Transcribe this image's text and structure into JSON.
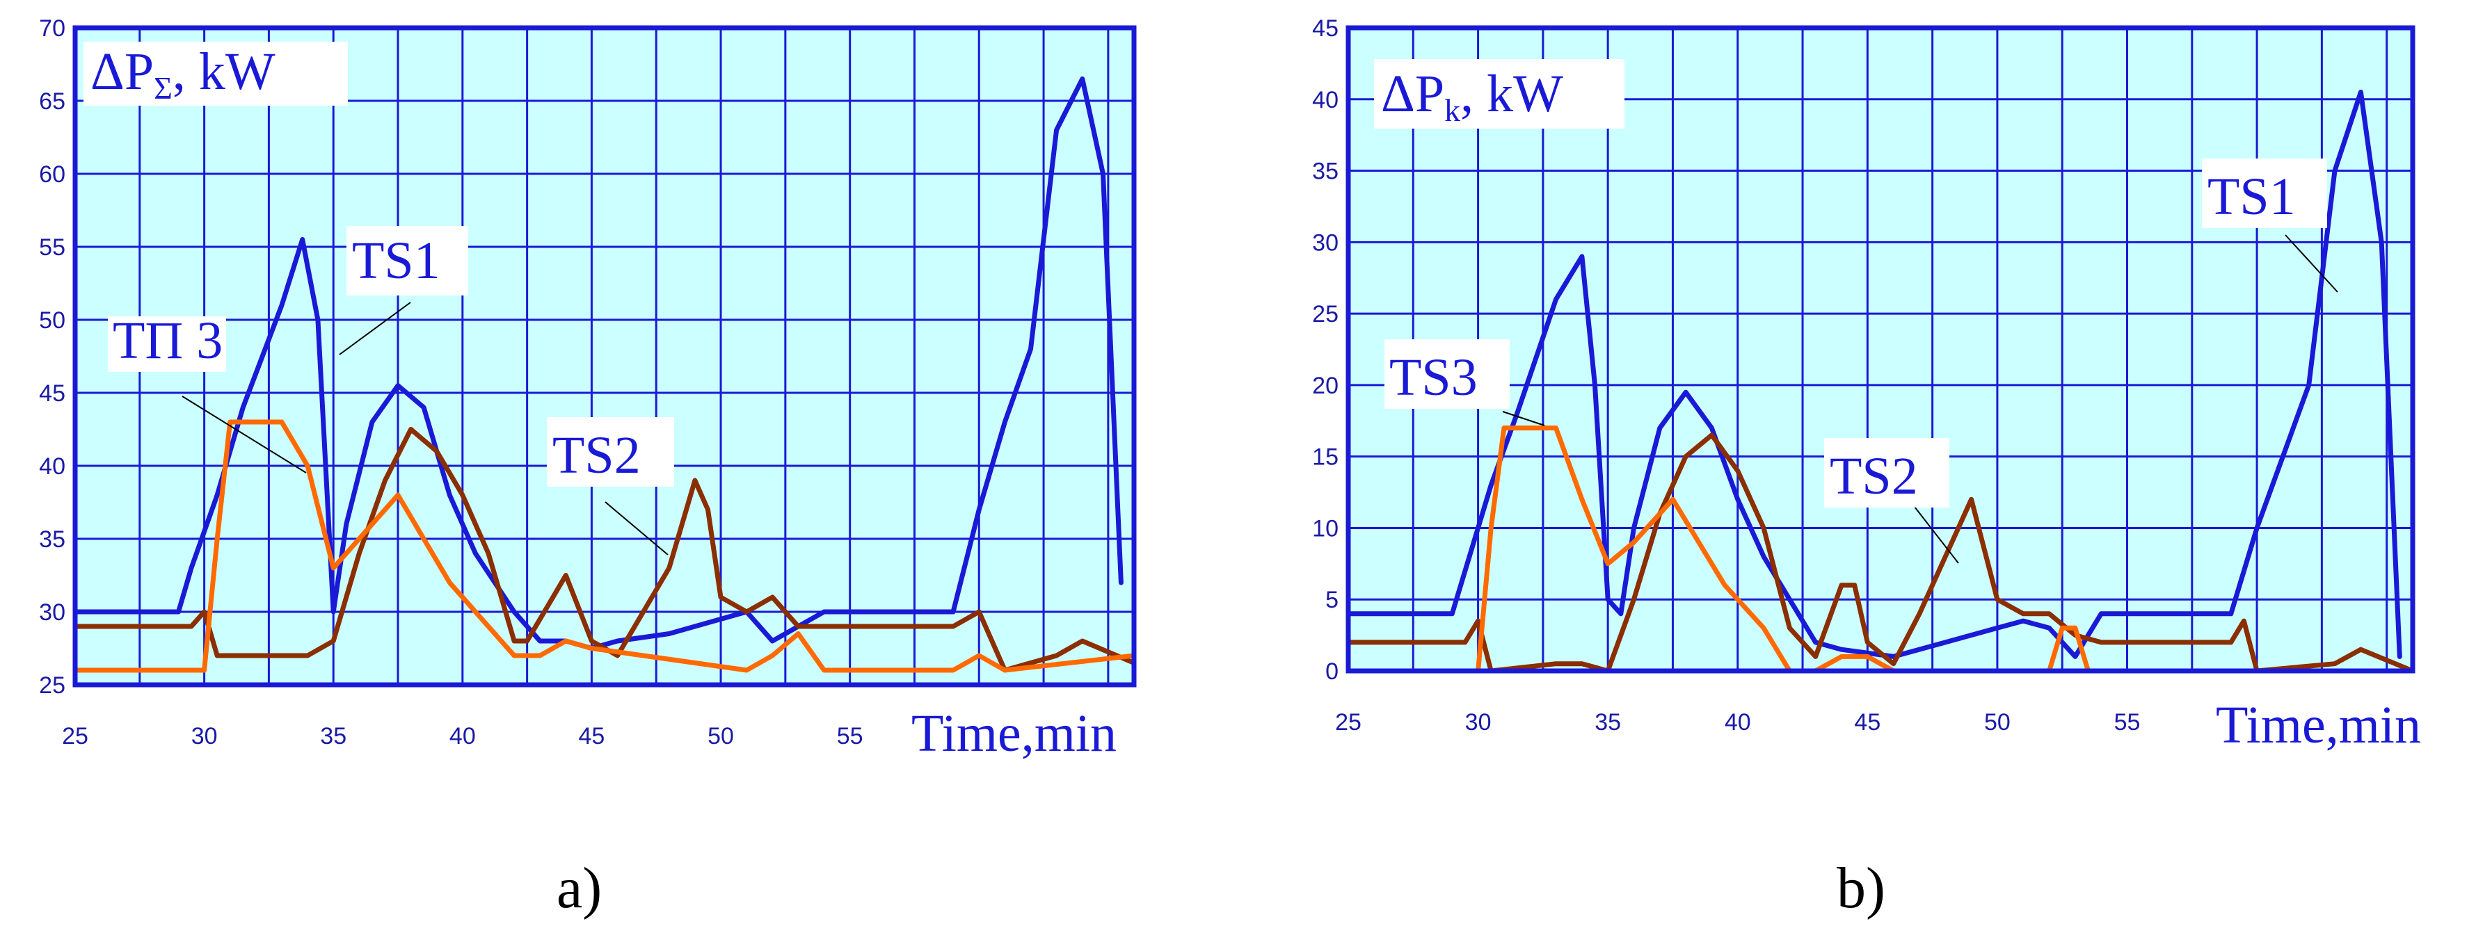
{
  "chart_data": [
    {
      "type": "line",
      "panel": "a",
      "caption": "a)",
      "ylabel_main": "ΔP",
      "ylabel_sub": "Σ",
      "ylabel_unit": ", kW",
      "xlabel": "Time,min",
      "xlim": [
        25,
        66
      ],
      "ylim": [
        25,
        70
      ],
      "xticks": [
        25,
        30,
        35,
        40,
        45,
        50,
        55
      ],
      "yticks": [
        25,
        30,
        35,
        40,
        45,
        50,
        55,
        60,
        65,
        70
      ],
      "grid": true,
      "background": "#ccffff",
      "series": [
        {
          "name": "TS1",
          "color": "#1a1ad6",
          "points": [
            [
              25,
              30
            ],
            [
              29,
              30
            ],
            [
              29.5,
              33
            ],
            [
              30.5,
              38
            ],
            [
              31.5,
              44
            ],
            [
              33,
              51
            ],
            [
              33.8,
              55.5
            ],
            [
              34.4,
              50
            ],
            [
              35,
              30
            ],
            [
              35.5,
              36
            ],
            [
              36.5,
              43
            ],
            [
              37.5,
              45.5
            ],
            [
              38.5,
              44
            ],
            [
              39.5,
              38
            ],
            [
              40.5,
              34
            ],
            [
              42,
              30
            ],
            [
              43,
              28
            ],
            [
              44,
              28
            ],
            [
              45,
              27.5
            ],
            [
              46,
              28
            ],
            [
              48,
              28.5
            ],
            [
              50,
              29.5
            ],
            [
              51,
              30
            ],
            [
              52,
              28
            ],
            [
              53,
              29
            ],
            [
              54,
              30
            ],
            [
              59,
              30
            ],
            [
              60,
              37
            ],
            [
              61,
              43
            ],
            [
              62,
              48
            ],
            [
              63,
              63
            ],
            [
              64,
              66.5
            ],
            [
              64.8,
              60
            ],
            [
              65.5,
              32
            ]
          ]
        },
        {
          "name": "ТП 3",
          "color": "#ff6a00",
          "points": [
            [
              25,
              26
            ],
            [
              30,
              26
            ],
            [
              30.5,
              35
            ],
            [
              31,
              43
            ],
            [
              33,
              43
            ],
            [
              34,
              40
            ],
            [
              35,
              33
            ],
            [
              36,
              35
            ],
            [
              37.5,
              38
            ],
            [
              38.5,
              35
            ],
            [
              39.5,
              32
            ],
            [
              40.5,
              30
            ],
            [
              42,
              27
            ],
            [
              43,
              27
            ],
            [
              44,
              28
            ],
            [
              45,
              27.5
            ],
            [
              47,
              27
            ],
            [
              49,
              26.5
            ],
            [
              51,
              26
            ],
            [
              52,
              27
            ],
            [
              53,
              28.5
            ],
            [
              54,
              26
            ],
            [
              59,
              26
            ],
            [
              60,
              27
            ],
            [
              61,
              26
            ],
            [
              66,
              27
            ]
          ]
        },
        {
          "name": "TS2",
          "color": "#8b2e00",
          "points": [
            [
              25,
              29
            ],
            [
              29.5,
              29
            ],
            [
              30,
              30
            ],
            [
              30.5,
              27
            ],
            [
              34,
              27
            ],
            [
              35,
              28
            ],
            [
              36,
              34
            ],
            [
              37,
              39
            ],
            [
              38,
              42.5
            ],
            [
              39,
              41
            ],
            [
              40,
              38
            ],
            [
              41,
              34
            ],
            [
              42,
              28
            ],
            [
              42.5,
              28
            ],
            [
              43.5,
              31
            ],
            [
              44,
              32.5
            ],
            [
              45,
              28
            ],
            [
              46,
              27
            ],
            [
              47,
              30
            ],
            [
              48,
              33
            ],
            [
              49,
              39
            ],
            [
              49.5,
              37
            ],
            [
              50,
              31
            ],
            [
              51,
              30
            ],
            [
              52,
              31
            ],
            [
              53,
              29
            ],
            [
              54,
              29
            ],
            [
              59,
              29
            ],
            [
              60,
              30
            ],
            [
              61,
              26
            ],
            [
              63,
              27
            ],
            [
              64,
              28
            ],
            [
              66,
              26.5
            ]
          ]
        }
      ],
      "annotations": [
        "TS1",
        "ТП 3",
        "TS2"
      ]
    },
    {
      "type": "line",
      "panel": "b",
      "caption": "b)",
      "ylabel_main": "ΔP",
      "ylabel_sub": "k",
      "ylabel_unit": ", kW",
      "xlabel": "Time,min",
      "xlim": [
        25,
        66
      ],
      "ylim": [
        0,
        45
      ],
      "xticks": [
        25,
        30,
        35,
        40,
        45,
        50,
        55
      ],
      "yticks": [
        0,
        5,
        10,
        15,
        20,
        25,
        30,
        35,
        40,
        45
      ],
      "grid": true,
      "background": "#ccffff",
      "series": [
        {
          "name": "TS1",
          "color": "#1a1ad6",
          "points": [
            [
              25,
              4
            ],
            [
              29,
              4
            ],
            [
              29.5,
              7
            ],
            [
              30.5,
              13
            ],
            [
              31.5,
              18
            ],
            [
              33,
              26
            ],
            [
              34,
              29
            ],
            [
              34.5,
              20
            ],
            [
              35,
              5
            ],
            [
              35.5,
              4
            ],
            [
              36,
              10
            ],
            [
              37,
              17
            ],
            [
              38,
              19.5
            ],
            [
              39,
              17
            ],
            [
              40,
              12
            ],
            [
              41,
              8
            ],
            [
              42,
              5
            ],
            [
              43,
              2
            ],
            [
              44,
              1.5
            ],
            [
              46,
              1
            ],
            [
              48,
              2
            ],
            [
              50,
              3
            ],
            [
              51,
              3.5
            ],
            [
              52,
              3
            ],
            [
              53,
              1
            ],
            [
              54,
              4
            ],
            [
              59,
              4
            ],
            [
              60,
              10
            ],
            [
              61,
              15
            ],
            [
              62,
              20
            ],
            [
              63,
              35
            ],
            [
              64,
              40.5
            ],
            [
              64.8,
              30
            ],
            [
              65.5,
              1
            ]
          ]
        },
        {
          "name": "TS3",
          "color": "#ff6a00",
          "points": [
            [
              25,
              0
            ],
            [
              30,
              0
            ],
            [
              30.5,
              10
            ],
            [
              31,
              17
            ],
            [
              33,
              17
            ],
            [
              34,
              12
            ],
            [
              35,
              7.5
            ],
            [
              36,
              9
            ],
            [
              37.5,
              12
            ],
            [
              38.5,
              9
            ],
            [
              39.5,
              6
            ],
            [
              41,
              3
            ],
            [
              42,
              0
            ],
            [
              43,
              0
            ],
            [
              44,
              1
            ],
            [
              45,
              1
            ],
            [
              46,
              0
            ],
            [
              52,
              0
            ],
            [
              52.5,
              3
            ],
            [
              53,
              3
            ],
            [
              53.5,
              0
            ],
            [
              66,
              0
            ]
          ]
        },
        {
          "name": "TS2",
          "color": "#8b2e00",
          "points": [
            [
              25,
              2
            ],
            [
              29.5,
              2
            ],
            [
              30,
              3.5
            ],
            [
              30.5,
              0
            ],
            [
              33,
              0.5
            ],
            [
              34,
              0.5
            ],
            [
              35,
              0
            ],
            [
              36,
              5
            ],
            [
              37,
              11
            ],
            [
              38,
              15
            ],
            [
              39,
              16.5
            ],
            [
              40,
              14
            ],
            [
              41,
              10
            ],
            [
              42,
              3
            ],
            [
              43,
              1
            ],
            [
              44,
              6
            ],
            [
              44.5,
              6
            ],
            [
              45,
              2
            ],
            [
              46,
              0.5
            ],
            [
              47,
              4
            ],
            [
              48,
              8
            ],
            [
              49,
              12
            ],
            [
              50,
              5
            ],
            [
              51,
              4
            ],
            [
              52,
              4
            ],
            [
              53,
              2.5
            ],
            [
              54,
              2
            ],
            [
              59,
              2
            ],
            [
              59.5,
              3.5
            ],
            [
              60,
              0
            ],
            [
              63,
              0.5
            ],
            [
              64,
              1.5
            ],
            [
              66,
              0
            ]
          ]
        }
      ],
      "annotations": [
        "TS1",
        "TS3",
        "TS2"
      ]
    }
  ]
}
